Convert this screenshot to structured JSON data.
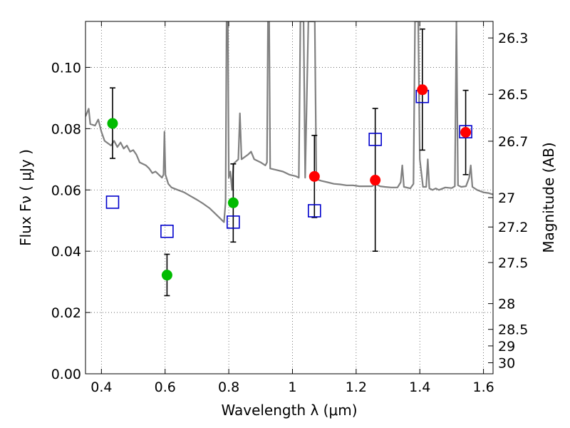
{
  "chart_data": {
    "type": "scatter",
    "title": "",
    "xlabel": "Wavelength  λ (μm)",
    "ylabel": "Flux  Fν  ( μJy )",
    "y2label": "Magnitude (AB)",
    "xlim": [
      0.35,
      1.63
    ],
    "ylim": [
      0.0,
      0.115
    ],
    "grid": true,
    "x_ticks": [
      0.4,
      0.6,
      0.8,
      1.0,
      1.2,
      1.4,
      1.6
    ],
    "x_tick_labels": [
      "0.4",
      "0.6",
      "0.8",
      "1",
      "1.2",
      "1.4",
      "1.6"
    ],
    "y_ticks": [
      0.0,
      0.02,
      0.04,
      0.06,
      0.08,
      0.1
    ],
    "y_tick_labels": [
      "0.00",
      "0.02",
      "0.04",
      "0.06",
      "0.08",
      "0.10"
    ],
    "y2_ticks": [
      {
        "label": "26.3",
        "flux": 0.1096
      },
      {
        "label": "26.5",
        "flux": 0.0912
      },
      {
        "label": "26.7",
        "flux": 0.0759
      },
      {
        "label": "27",
        "flux": 0.0575
      },
      {
        "label": "27.2",
        "flux": 0.0479
      },
      {
        "label": "27.5",
        "flux": 0.0363
      },
      {
        "label": "28",
        "flux": 0.0229
      },
      {
        "label": "28.5",
        "flux": 0.0145
      },
      {
        "label": "29",
        "flux": 0.0091
      },
      {
        "label": "30",
        "flux": 0.0036
      }
    ],
    "series": [
      {
        "kind": "observed",
        "color": "#00bb00",
        "points": [
          {
            "x": 0.435,
            "y": 0.0817,
            "ylo": 0.0703,
            "yhi": 0.0933
          },
          {
            "x": 0.606,
            "y": 0.0322,
            "ylo": 0.0255,
            "yhi": 0.039
          },
          {
            "x": 0.814,
            "y": 0.0558,
            "ylo": 0.043,
            "yhi": 0.0685
          }
        ]
      },
      {
        "kind": "observed",
        "color": "#ff0000",
        "points": [
          {
            "x": 1.069,
            "y": 0.0644,
            "ylo": 0.051,
            "yhi": 0.0778
          },
          {
            "x": 1.26,
            "y": 0.0632,
            "ylo": 0.04,
            "yhi": 0.0866
          },
          {
            "x": 1.408,
            "y": 0.0927,
            "ylo": 0.073,
            "yhi": 0.1125
          },
          {
            "x": 1.544,
            "y": 0.0788,
            "ylo": 0.065,
            "yhi": 0.0925
          }
        ]
      },
      {
        "kind": "model",
        "color": "#0000cc",
        "marker": "square",
        "points": [
          {
            "x": 0.435,
            "y": 0.056
          },
          {
            "x": 0.606,
            "y": 0.0465
          },
          {
            "x": 0.814,
            "y": 0.0495
          },
          {
            "x": 1.069,
            "y": 0.0532
          },
          {
            "x": 1.26,
            "y": 0.0765
          },
          {
            "x": 1.408,
            "y": 0.0905
          },
          {
            "x": 1.544,
            "y": 0.079
          }
        ]
      },
      {
        "kind": "spectrum",
        "color": "#808080",
        "line": [
          [
            0.35,
            0.084
          ],
          [
            0.36,
            0.0865
          ],
          [
            0.365,
            0.0815
          ],
          [
            0.38,
            0.081
          ],
          [
            0.39,
            0.083
          ],
          [
            0.4,
            0.079
          ],
          [
            0.41,
            0.076
          ],
          [
            0.43,
            0.0745
          ],
          [
            0.44,
            0.076
          ],
          [
            0.45,
            0.074
          ],
          [
            0.46,
            0.0755
          ],
          [
            0.47,
            0.0735
          ],
          [
            0.48,
            0.0745
          ],
          [
            0.49,
            0.0725
          ],
          [
            0.5,
            0.073
          ],
          [
            0.51,
            0.0715
          ],
          [
            0.52,
            0.069
          ],
          [
            0.54,
            0.068
          ],
          [
            0.55,
            0.067
          ],
          [
            0.56,
            0.0655
          ],
          [
            0.57,
            0.066
          ],
          [
            0.58,
            0.065
          ],
          [
            0.59,
            0.064
          ],
          [
            0.595,
            0.065
          ],
          [
            0.598,
            0.079
          ],
          [
            0.601,
            0.065
          ],
          [
            0.61,
            0.062
          ],
          [
            0.62,
            0.0608
          ],
          [
            0.64,
            0.06
          ],
          [
            0.66,
            0.0592
          ],
          [
            0.68,
            0.058
          ],
          [
            0.7,
            0.0568
          ],
          [
            0.72,
            0.0555
          ],
          [
            0.74,
            0.054
          ],
          [
            0.76,
            0.052
          ],
          [
            0.775,
            0.0505
          ],
          [
            0.785,
            0.0495
          ],
          [
            0.79,
            0.056
          ],
          [
            0.793,
            0.115
          ],
          [
            0.797,
            0.115
          ],
          [
            0.8,
            0.064
          ],
          [
            0.805,
            0.066
          ],
          [
            0.81,
            0.06
          ],
          [
            0.815,
            0.0685
          ],
          [
            0.82,
            0.069
          ],
          [
            0.83,
            0.07
          ],
          [
            0.835,
            0.085
          ],
          [
            0.84,
            0.07
          ],
          [
            0.86,
            0.0715
          ],
          [
            0.87,
            0.0725
          ],
          [
            0.88,
            0.07
          ],
          [
            0.9,
            0.069
          ],
          [
            0.915,
            0.068
          ],
          [
            0.92,
            0.069
          ],
          [
            0.923,
            0.115
          ],
          [
            0.927,
            0.115
          ],
          [
            0.93,
            0.067
          ],
          [
            0.95,
            0.0665
          ],
          [
            0.97,
            0.066
          ],
          [
            0.99,
            0.065
          ],
          [
            1.01,
            0.0645
          ],
          [
            1.02,
            0.064
          ],
          [
            1.025,
            0.115
          ],
          [
            1.035,
            0.115
          ],
          [
            1.04,
            0.064
          ],
          [
            1.05,
            0.115
          ],
          [
            1.07,
            0.115
          ],
          [
            1.075,
            0.0635
          ],
          [
            1.09,
            0.063
          ],
          [
            1.11,
            0.0625
          ],
          [
            1.13,
            0.062
          ],
          [
            1.15,
            0.0618
          ],
          [
            1.17,
            0.0615
          ],
          [
            1.19,
            0.0615
          ],
          [
            1.21,
            0.0612
          ],
          [
            1.23,
            0.0612
          ],
          [
            1.25,
            0.0612
          ],
          [
            1.26,
            0.062
          ],
          [
            1.275,
            0.0612
          ],
          [
            1.29,
            0.061
          ],
          [
            1.31,
            0.0608
          ],
          [
            1.33,
            0.0608
          ],
          [
            1.34,
            0.0625
          ],
          [
            1.345,
            0.068
          ],
          [
            1.35,
            0.061
          ],
          [
            1.37,
            0.0605
          ],
          [
            1.38,
            0.062
          ],
          [
            1.385,
            0.115
          ],
          [
            1.395,
            0.115
          ],
          [
            1.4,
            0.07
          ],
          [
            1.41,
            0.061
          ],
          [
            1.42,
            0.061
          ],
          [
            1.425,
            0.07
          ],
          [
            1.43,
            0.0605
          ],
          [
            1.44,
            0.06
          ],
          [
            1.45,
            0.0605
          ],
          [
            1.46,
            0.06
          ],
          [
            1.48,
            0.0608
          ],
          [
            1.5,
            0.0606
          ],
          [
            1.51,
            0.0612
          ],
          [
            1.515,
            0.115
          ],
          [
            1.52,
            0.0615
          ],
          [
            1.53,
            0.061
          ],
          [
            1.545,
            0.0612
          ],
          [
            1.555,
            0.064
          ],
          [
            1.56,
            0.068
          ],
          [
            1.565,
            0.061
          ],
          [
            1.58,
            0.06
          ],
          [
            1.6,
            0.0592
          ],
          [
            1.615,
            0.059
          ],
          [
            1.63,
            0.0585
          ]
        ]
      }
    ]
  }
}
